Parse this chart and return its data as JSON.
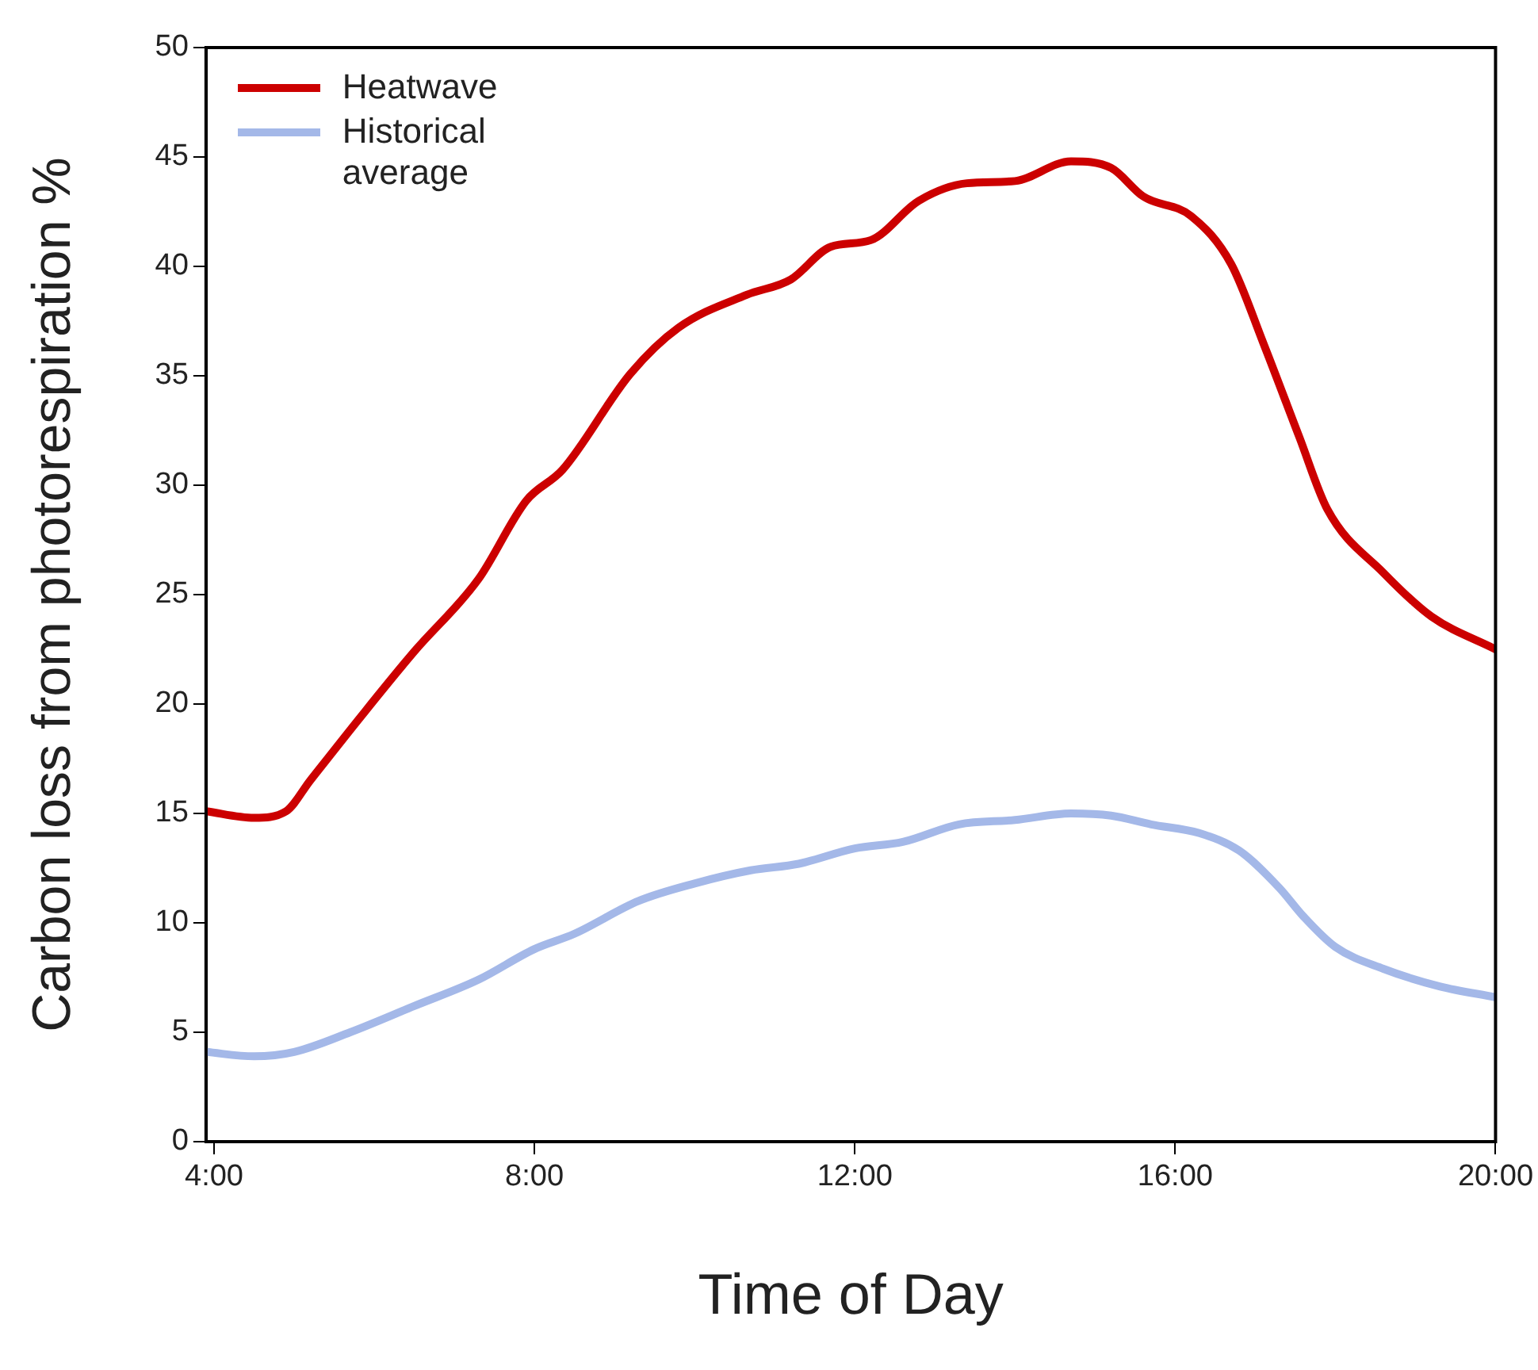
{
  "chart_data": {
    "type": "line",
    "xlabel": "Time of Day",
    "ylabel": "Carbon loss from photorespiration %",
    "xlim": [
      3.9,
      20
    ],
    "xticks": [
      {
        "value": 4,
        "label": "4:00"
      },
      {
        "value": 8,
        "label": "8:00"
      },
      {
        "value": 12,
        "label": "12:00"
      },
      {
        "value": 16,
        "label": "16:00"
      },
      {
        "value": 20,
        "label": "20:00"
      }
    ],
    "ylim": [
      0,
      50
    ],
    "yticks": [
      0,
      5,
      10,
      15,
      20,
      25,
      30,
      35,
      40,
      45,
      50
    ],
    "grid": false,
    "legend": "top left",
    "marker": "none",
    "line_style": "solid",
    "series": [
      {
        "name": "Heatwave",
        "color": "#cc0000",
        "x": [
          3.9,
          4.5,
          4.9,
          5.2,
          5.85,
          6.5,
          7.3,
          7.9,
          8.35,
          9.2,
          9.8,
          10.65,
          11.2,
          11.7,
          12.2,
          12.8,
          13.4,
          14.0,
          14.7,
          15.2,
          15.6,
          16.2,
          16.7,
          17.1,
          17.55,
          17.9,
          18.6,
          19.2,
          20.0
        ],
        "values": [
          15.1,
          14.8,
          15.1,
          16.5,
          19.5,
          22.4,
          25.7,
          29.3,
          30.7,
          35.1,
          37.2,
          38.7,
          39.4,
          40.9,
          41.2,
          43.0,
          43.8,
          43.9,
          44.8,
          44.5,
          43.2,
          42.3,
          40.1,
          36.5,
          32.2,
          28.9,
          26.0,
          24.0,
          22.5
        ]
      },
      {
        "name": "Historical average",
        "color": "#a4b8e8",
        "x": [
          3.9,
          4.5,
          5.0,
          5.7,
          6.5,
          7.3,
          8.0,
          8.5,
          9.3,
          10.0,
          10.7,
          11.3,
          12.0,
          12.6,
          13.3,
          14.0,
          14.7,
          15.2,
          15.7,
          16.3,
          16.8,
          17.3,
          17.6,
          18.0,
          18.6,
          19.3,
          20.0
        ],
        "values": [
          4.1,
          3.9,
          4.1,
          5.0,
          6.2,
          7.4,
          8.8,
          9.5,
          11.0,
          11.8,
          12.4,
          12.7,
          13.4,
          13.7,
          14.5,
          14.7,
          15.0,
          14.9,
          14.5,
          14.1,
          13.3,
          11.6,
          10.3,
          8.9,
          7.9,
          7.1,
          6.6
        ]
      }
    ]
  }
}
